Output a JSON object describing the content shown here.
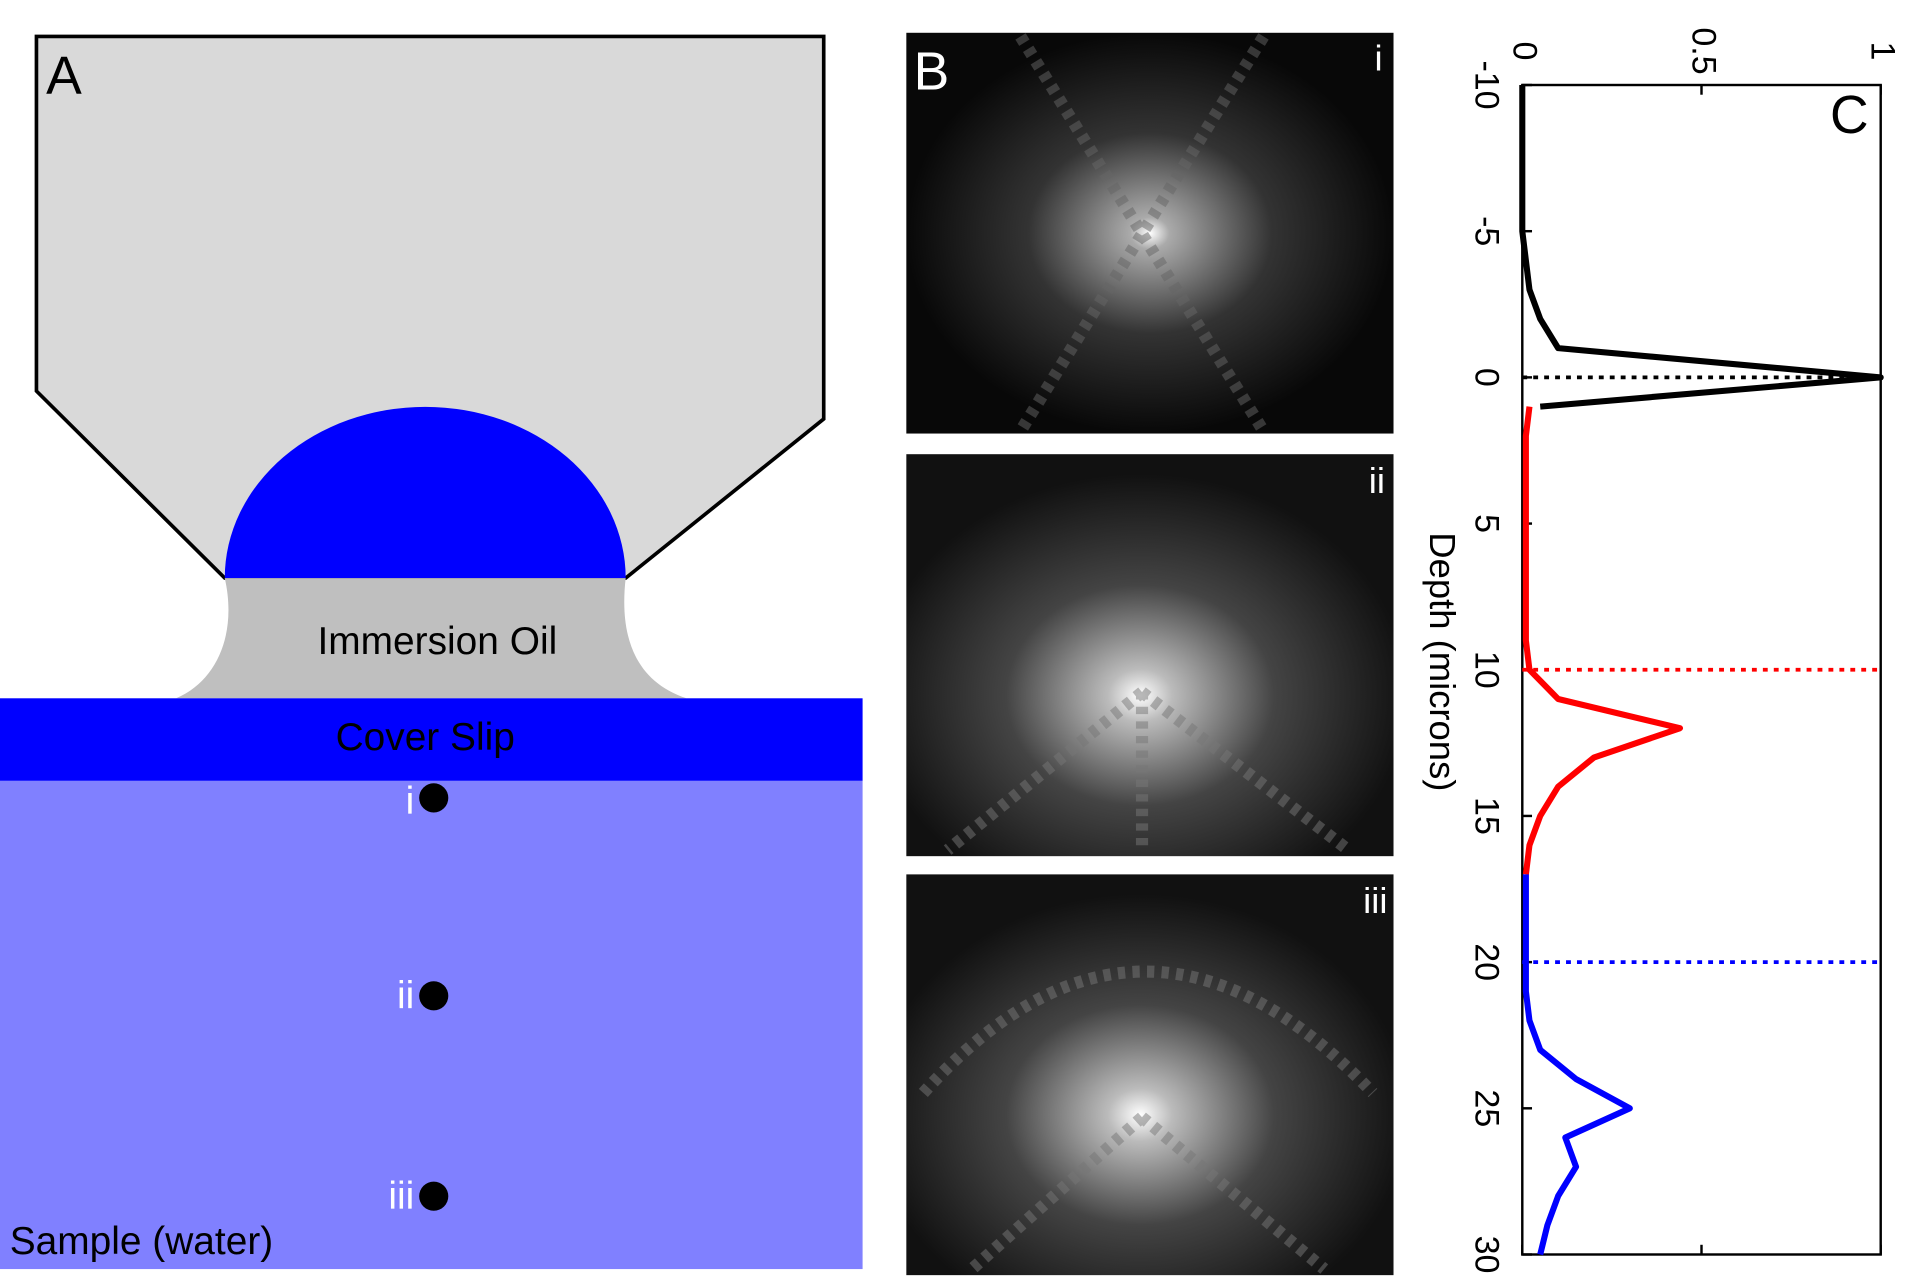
{
  "panel_a": {
    "label": "A",
    "immersion_oil": "Immersion Oil",
    "cover_slip": "Cover Slip",
    "sample": "Sample (water)",
    "points": [
      "i",
      "ii",
      "iii"
    ]
  },
  "panel_b": {
    "label": "B",
    "images": [
      "i",
      "ii",
      "iii"
    ]
  },
  "chart_data": {
    "type": "line",
    "panel_label": "C",
    "xlabel": "Depth (microns)",
    "x": [
      -10,
      -9,
      -8,
      -7,
      -6,
      -5,
      -4,
      -3,
      -2,
      -1,
      0,
      1,
      2,
      3,
      4,
      5,
      6,
      7,
      8,
      9,
      10,
      11,
      12,
      13,
      14,
      15,
      16,
      17,
      18,
      19,
      20,
      21,
      22,
      23,
      24,
      25,
      26,
      27,
      28,
      29,
      30
    ],
    "series": [
      {
        "color": "#000000",
        "values": [
          0,
          0,
          0,
          0,
          0,
          0,
          0.01,
          0.02,
          0.05,
          0.1,
          1,
          0.05,
          null,
          null,
          null,
          null,
          null,
          null,
          null,
          null,
          null,
          null,
          null,
          null,
          null,
          null,
          null,
          null,
          null,
          null,
          null,
          null,
          null,
          null,
          null,
          null,
          null,
          null,
          null,
          null,
          null
        ]
      },
      {
        "color": "#ff0000",
        "values": [
          null,
          null,
          null,
          null,
          null,
          null,
          null,
          null,
          null,
          null,
          null,
          0.02,
          0.01,
          0.01,
          0.01,
          0.01,
          0.01,
          0.01,
          0.01,
          0.01,
          0.02,
          0.1,
          0.44,
          0.2,
          0.1,
          0.05,
          0.02,
          0.01,
          null,
          null,
          null,
          null,
          null,
          null,
          null,
          null,
          null,
          null,
          null,
          null,
          null
        ]
      },
      {
        "color": "#0000ff",
        "values": [
          null,
          null,
          null,
          null,
          null,
          null,
          null,
          null,
          null,
          null,
          null,
          null,
          null,
          null,
          null,
          null,
          null,
          null,
          null,
          null,
          null,
          null,
          null,
          null,
          null,
          null,
          null,
          0.01,
          0.01,
          0.01,
          0.01,
          0.01,
          0.02,
          0.05,
          0.15,
          0.3,
          0.12,
          0.15,
          0.1,
          0.07,
          0.05
        ]
      }
    ],
    "reference_lines": [
      {
        "x": 0,
        "color": "#000000"
      },
      {
        "x": 10,
        "color": "#ff0000"
      },
      {
        "x": 20,
        "color": "#0000ff"
      }
    ],
    "xlim": [
      -10,
      30
    ],
    "xticks": [
      -10,
      -5,
      0,
      5,
      10,
      15,
      20,
      25,
      30
    ],
    "ylim": [
      0,
      1
    ],
    "yticks": [
      0,
      0.5,
      1
    ]
  }
}
